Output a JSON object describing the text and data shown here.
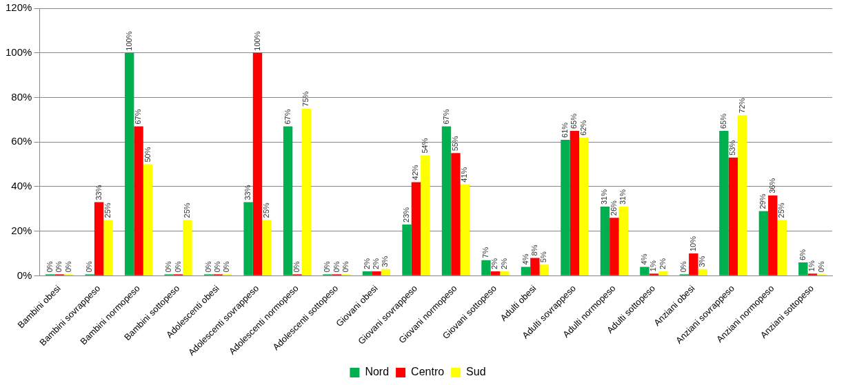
{
  "chart_data": {
    "type": "bar",
    "categories": [
      "Bambini obesi",
      "Bambini sovrappeso",
      "Bambini normopeso",
      "Bambini sottopeso",
      "Adolescenti obesi",
      "Adolescenti sovrappeso",
      "Adolescenti normopeso",
      "Adolescenti sottopeso",
      "Giovani obesi",
      "Giovani sovrappeso",
      "Giovani normopeso",
      "Giovani sottopeso",
      "Adulti obesi",
      "Adulti sovrappeso",
      "Adulti normopeso",
      "Adulti sottopeso",
      "Anziani obesi",
      "Anziani sovrappeso",
      "Anziani normopeso",
      "Anziani sottopeso"
    ],
    "series": [
      {
        "name": "Nord",
        "color": "#00b050",
        "values": [
          0,
          0,
          100,
          0,
          0,
          33,
          67,
          0,
          2,
          23,
          67,
          7,
          4,
          61,
          31,
          4,
          0,
          65,
          29,
          6
        ],
        "value_labels": [
          "0%",
          "0%",
          "100%",
          "0%",
          "0%",
          "33%",
          "67%",
          "0%",
          "2%",
          "23%",
          "67%",
          "7%",
          "4%",
          "61%",
          "31%",
          "4%",
          "0%",
          "65%",
          "29%",
          "6%"
        ]
      },
      {
        "name": "Centro",
        "color": "#ff0000",
        "values": [
          0,
          33,
          67,
          0,
          0,
          100,
          0,
          0,
          2,
          42,
          55,
          2,
          8,
          65,
          26,
          1,
          10,
          53,
          36,
          1
        ],
        "value_labels": [
          "0%",
          "33%",
          "67%",
          "0%",
          "0%",
          "100%",
          "0%",
          "0%",
          "2%",
          "42%",
          "55%",
          "2%",
          "8%",
          "65%",
          "26%",
          "1%",
          "10%",
          "53%",
          "36%",
          "1%"
        ]
      },
      {
        "name": "Sud",
        "color": "#ffff00",
        "values": [
          0,
          25,
          50,
          25,
          0,
          25,
          75,
          0,
          3,
          54,
          41,
          2,
          5,
          62,
          31,
          2,
          3,
          72,
          25,
          0
        ],
        "value_labels": [
          "0%",
          "25%",
          "50%",
          "25%",
          "0%",
          "25%",
          "75%",
          "0%",
          "3%",
          "54%",
          "41%",
          "2%",
          "5%",
          "62%",
          "31%",
          "2%",
          "3%",
          "72%",
          "25%",
          "0%"
        ]
      }
    ],
    "ylim": [
      0,
      120
    ],
    "yticks": [
      {
        "value": 0,
        "label": "0%"
      },
      {
        "value": 20,
        "label": "20%"
      },
      {
        "value": 40,
        "label": "40%"
      },
      {
        "value": 60,
        "label": "60%"
      },
      {
        "value": 80,
        "label": "80%"
      },
      {
        "value": 100,
        "label": "100%"
      },
      {
        "value": 120,
        "label": "120%"
      }
    ],
    "grid": "y",
    "legend": "bottom"
  }
}
